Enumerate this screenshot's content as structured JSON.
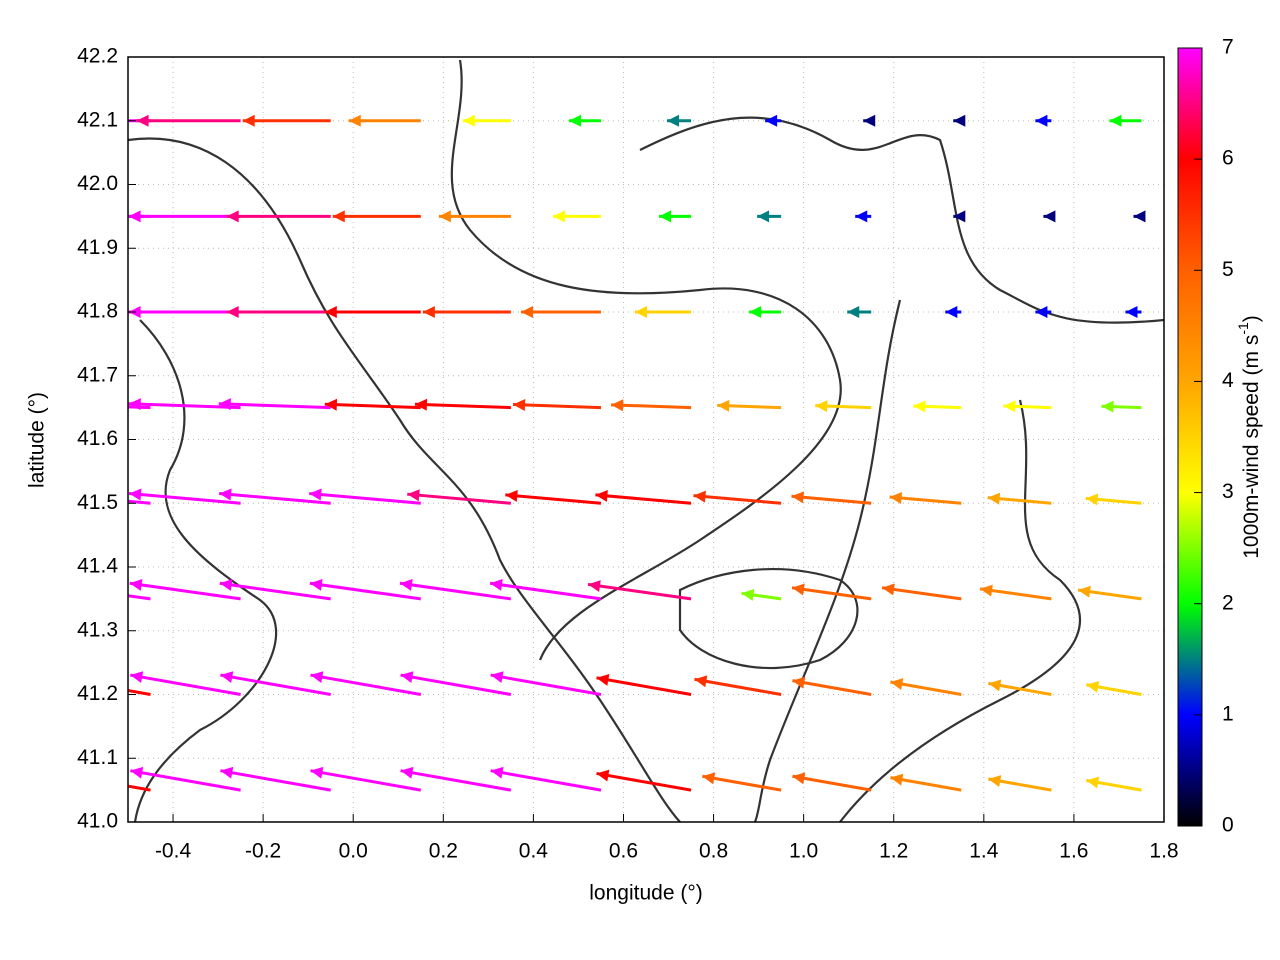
{
  "chart_data": {
    "type": "vector",
    "x_label": "longitude (°)",
    "y_label": "latitude (°)",
    "colorbar_label": {
      "text": "1000m-wind speed (m s",
      "sup": "-1",
      "end": ")"
    },
    "xlim": [
      -0.5,
      1.8
    ],
    "ylim": [
      41.0,
      42.2
    ],
    "xticks": [
      -0.4,
      -0.2,
      {
        "value": 0,
        "label": "0.0"
      },
      0.2,
      0.4,
      0.6,
      0.8,
      {
        "value": 1,
        "label": "1.0"
      },
      1.2,
      1.4,
      1.6,
      1.8
    ],
    "yticks": [
      {
        "value": 41,
        "label": "41.0"
      },
      41.1,
      41.2,
      41.3,
      41.4,
      41.5,
      41.6,
      41.7,
      41.8,
      41.9,
      {
        "value": 42,
        "label": "42.0"
      },
      42.1,
      42.2
    ],
    "clim": [
      0,
      7
    ],
    "cticks": [
      0,
      1,
      2,
      3,
      4,
      5,
      6,
      7
    ],
    "colors": [
      "#000000",
      "#0000ff",
      "#00ff00",
      "#ffff00",
      "#ffa500",
      "#ff6000",
      "#ff0000",
      "#ff00ff"
    ],
    "grid": true,
    "lons": [
      -0.45,
      -0.25,
      -0.05,
      0.15,
      0.35,
      0.55,
      0.75,
      0.95,
      1.15,
      1.35,
      1.55,
      1.75
    ],
    "lats": [
      41.05,
      41.2,
      41.35,
      41.5,
      41.65,
      41.8,
      41.95,
      42.1
    ],
    "headings": [
      170,
      170,
      172,
      175,
      178,
      180,
      180,
      180
    ],
    "speed": [
      [
        6,
        7,
        7,
        7,
        7,
        7,
        6,
        5,
        5,
        4.5,
        4,
        3.5
      ],
      [
        6,
        7,
        7,
        7,
        7,
        7,
        6,
        5.5,
        5,
        4.5,
        4,
        3.5
      ],
      [
        7,
        7,
        7,
        7,
        7,
        7,
        6.5,
        2.5,
        5,
        5,
        4.5,
        4
      ],
      [
        7,
        7,
        7,
        7,
        6.5,
        6,
        6,
        5.5,
        5,
        4.5,
        4,
        3.5
      ],
      [
        7,
        7,
        7,
        6,
        6,
        5.5,
        5,
        4,
        3.5,
        3,
        3,
        2.5
      ],
      [
        7,
        7,
        6.5,
        6,
        5.5,
        5,
        3.5,
        2,
        1.5,
        1,
        1,
        1
      ],
      [
        7,
        7,
        6.5,
        5.5,
        4.5,
        3,
        2,
        1.5,
        1,
        0.5,
        0.5,
        0.5
      ],
      [
        7,
        6.5,
        5.5,
        4.5,
        3,
        2,
        1.5,
        1,
        0.5,
        0.5,
        1,
        2
      ]
    ]
  }
}
